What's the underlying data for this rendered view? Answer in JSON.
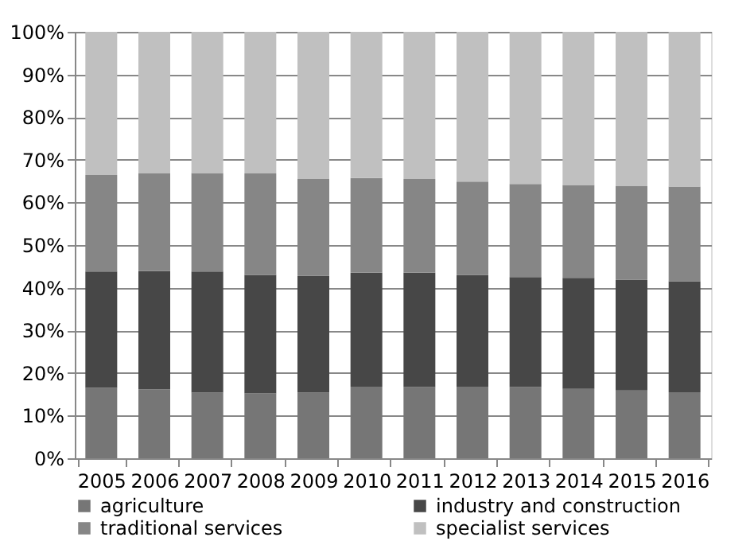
{
  "chart_data": {
    "type": "bar",
    "stacked": true,
    "categories": [
      "2005",
      "2006",
      "2007",
      "2008",
      "2009",
      "2010",
      "2011",
      "2012",
      "2013",
      "2014",
      "2015",
      "2016"
    ],
    "series": [
      {
        "name": "agriculture",
        "color": "#767676",
        "values": [
          16.5,
          16.2,
          15.4,
          15.2,
          15.4,
          16.8,
          16.7,
          16.8,
          16.7,
          16.3,
          15.9,
          15.5
        ]
      },
      {
        "name": "industry and construction",
        "color": "#474747",
        "values": [
          27.3,
          27.7,
          28.4,
          27.8,
          27.4,
          26.7,
          26.8,
          26.2,
          25.8,
          26.0,
          26.0,
          26.0
        ]
      },
      {
        "name": "traditional services",
        "color": "#868686",
        "values": [
          22.6,
          22.9,
          23.1,
          23.8,
          22.7,
          22.2,
          22.0,
          21.9,
          21.8,
          21.8,
          21.9,
          22.2
        ]
      },
      {
        "name": "specialist services",
        "color": "#c0c0c0",
        "values": [
          33.6,
          33.2,
          33.1,
          33.2,
          34.5,
          34.3,
          34.5,
          35.1,
          35.7,
          35.9,
          36.2,
          36.3
        ]
      }
    ],
    "ylim": [
      0,
      100
    ],
    "yticks": [
      {
        "value": 0,
        "label": "0%"
      },
      {
        "value": 10,
        "label": "10%"
      },
      {
        "value": 20,
        "label": "20%"
      },
      {
        "value": 30,
        "label": "30%"
      },
      {
        "value": 40,
        "label": "40%"
      },
      {
        "value": 50,
        "label": "50%"
      },
      {
        "value": 60,
        "label": "60%"
      },
      {
        "value": 70,
        "label": "70%"
      },
      {
        "value": 80,
        "label": "80%"
      },
      {
        "value": 90,
        "label": "90%"
      },
      {
        "value": 100,
        "label": "100%"
      }
    ],
    "grid": "y",
    "legend": "bottom"
  }
}
